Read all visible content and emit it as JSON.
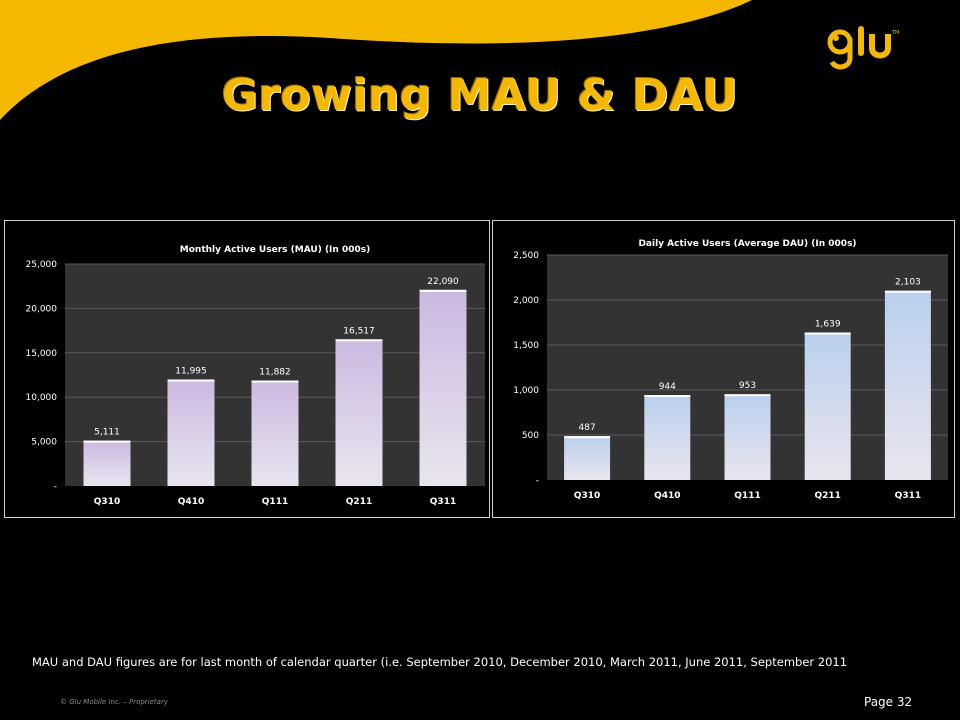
{
  "slide": {
    "title": "Growing MAU & DAU",
    "footnote": "MAU and DAU figures are for last month of calendar quarter (i.e. September 2010, December 2010, March 2011, June 2011, September 2011",
    "copyright": "© Glu Mobile Inc. – Proprietary",
    "page": "Page 32",
    "logo_text": "glu",
    "accent_color": "#f5b800"
  },
  "chart_data": [
    {
      "type": "bar",
      "title": "Monthly Active Users (MAU) (In 000s)",
      "categories": [
        "Q310",
        "Q410",
        "Q111",
        "Q211",
        "Q311"
      ],
      "values": [
        5111,
        11995,
        11882,
        16517,
        22090
      ],
      "value_labels": [
        "5,111",
        "11,995",
        "11,882",
        "16,517",
        "22,090"
      ],
      "ylim": [
        0,
        25000
      ],
      "yticks": [
        0,
        5000,
        10000,
        15000,
        20000,
        25000
      ],
      "ytick_labels": [
        "-",
        "5,000",
        "10,000",
        "15,000",
        "20,000",
        "25,000"
      ],
      "grid": true,
      "bar_color": "#cbb8e0"
    },
    {
      "type": "bar",
      "title": "Daily Active Users (Average DAU) (In 000s)",
      "categories": [
        "Q310",
        "Q410",
        "Q111",
        "Q211",
        "Q311"
      ],
      "values": [
        487,
        944,
        953,
        1639,
        2103
      ],
      "value_labels": [
        "487",
        "944",
        "953",
        "1,639",
        "2,103"
      ],
      "ylim": [
        0,
        2500
      ],
      "yticks": [
        0,
        500,
        1000,
        1500,
        2000,
        2500
      ],
      "ytick_labels": [
        "-",
        "500",
        "1,000",
        "1,500",
        "2,000",
        "2,500"
      ],
      "grid": true,
      "bar_color": "#b9d0ee"
    }
  ]
}
